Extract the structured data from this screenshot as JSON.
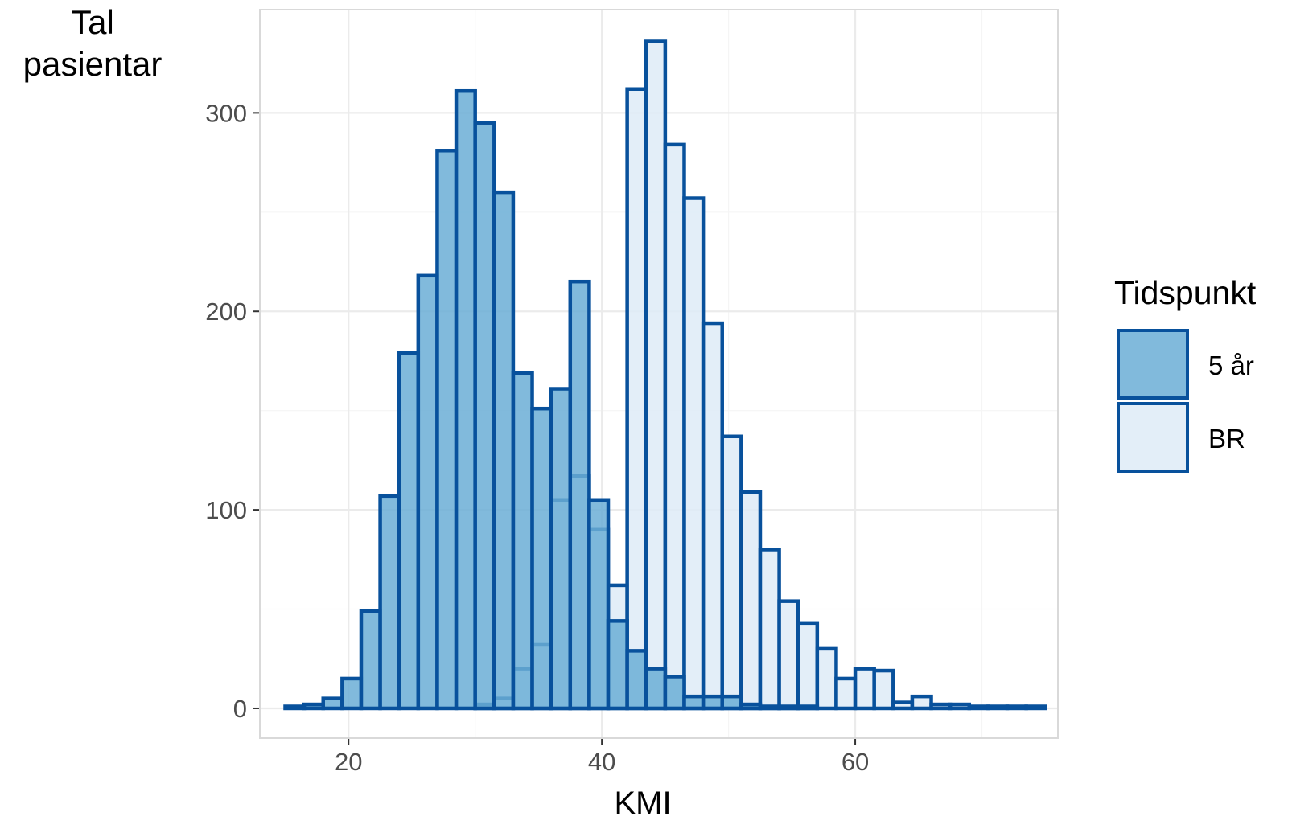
{
  "chart_data": {
    "type": "bar",
    "subtype": "overlapping histogram",
    "title": "",
    "ylabel": "Tal pasientar",
    "ylabel_lines": [
      "Tal",
      "pasientar"
    ],
    "xlabel": "KMI",
    "xlim": [
      13,
      76
    ],
    "ylim": [
      -15,
      352
    ],
    "x_ticks": [
      20,
      40,
      60
    ],
    "x_tick_labels": [
      "20",
      "40",
      "60"
    ],
    "y_ticks": [
      0,
      100,
      200,
      300
    ],
    "y_tick_labels": [
      "0",
      "100",
      "200",
      "300"
    ],
    "grid": true,
    "bin_width": 1.5,
    "bin_starts": [
      15,
      16.5,
      18,
      19.5,
      21,
      22.5,
      24,
      25.5,
      27,
      28.5,
      30,
      31.5,
      33,
      34.5,
      36,
      37.5,
      39,
      40.5,
      42,
      43.5,
      45,
      46.5,
      48,
      49.5,
      51,
      52.5,
      54,
      55.5,
      57,
      58.5,
      60,
      61.5,
      63,
      64.5,
      66,
      67.5,
      69,
      70.5,
      72,
      73.5
    ],
    "legend": {
      "title": "Tidspunkt",
      "position": "right",
      "entries": [
        "5 år",
        "BR"
      ]
    },
    "series": [
      {
        "name": "BR",
        "fill": "#deebf7",
        "stroke": "#08519c",
        "fill_opacity": 0.85,
        "values": [
          0,
          0,
          0,
          0,
          0,
          0,
          0,
          0,
          0,
          0,
          2,
          5,
          20,
          32,
          105,
          117,
          90,
          62,
          312,
          336,
          284,
          257,
          194,
          137,
          109,
          80,
          54,
          43,
          30,
          15,
          20,
          19,
          3,
          6,
          2,
          2,
          1,
          1,
          1,
          1
        ]
      },
      {
        "name": "5 år",
        "fill": "#6baed6",
        "stroke": "#08519c",
        "fill_opacity": 0.85,
        "values": [
          1,
          2,
          5,
          15,
          49,
          107,
          179,
          218,
          281,
          311,
          295,
          260,
          169,
          151,
          161,
          215,
          105,
          44,
          29,
          20,
          16,
          6,
          6,
          6,
          2,
          1,
          1,
          1,
          0,
          0,
          0,
          0,
          0,
          0,
          0,
          0,
          0,
          0,
          0,
          0
        ]
      }
    ]
  },
  "colors": {
    "five_year_fill": "#6baed6",
    "br_fill": "#deebf7",
    "bar_stroke": "#08519c",
    "grid_major": "#ebebeb",
    "grid_minor": "#f5f5f5",
    "panel_border": "#d9d9d9",
    "tick_text": "#4d4d4d"
  }
}
